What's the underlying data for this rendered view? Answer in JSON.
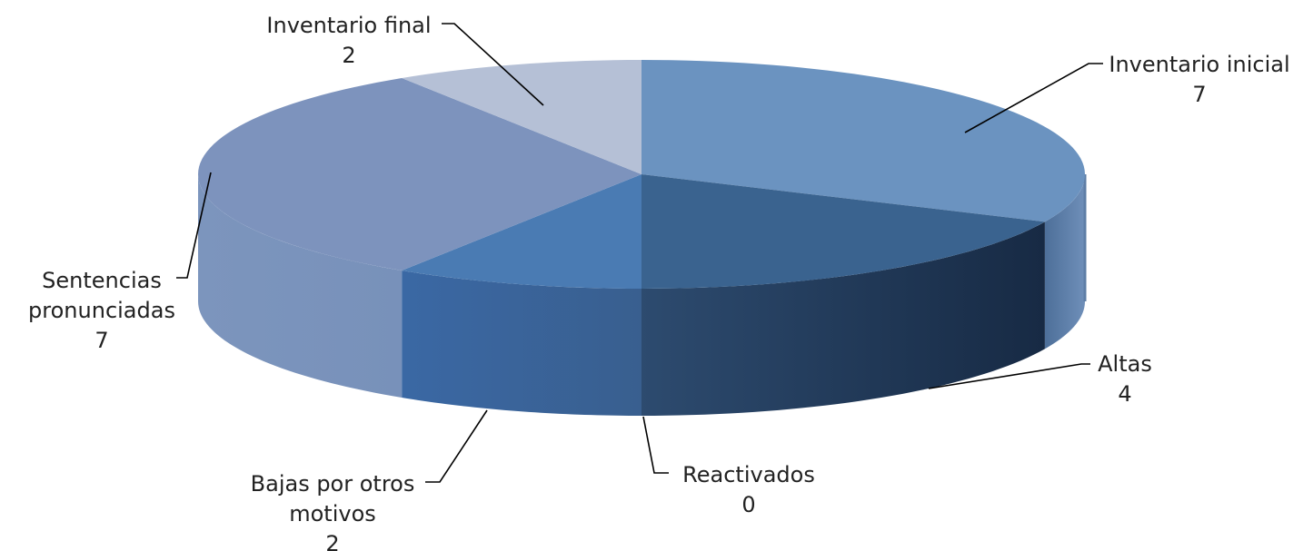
{
  "chart_data": {
    "type": "pie",
    "style": "3d",
    "title": "",
    "series": [
      {
        "name": "",
        "slices": [
          {
            "label": "Inventario inicial",
            "value": 7,
            "color": "#6b93c0"
          },
          {
            "label": "Altas",
            "value": 4,
            "color": "#3a638f"
          },
          {
            "label": "Reactivados",
            "value": 0,
            "color": "#3c6aa0"
          },
          {
            "label": "Bajas por otros motivos",
            "value": 2,
            "color": "#4a7bb3"
          },
          {
            "label": "Sentencias pronunciadas",
            "value": 7,
            "color": "#7d93bd"
          },
          {
            "label": "Inventario final",
            "value": 2,
            "color": "#b5c0d6"
          }
        ]
      }
    ],
    "legend": "none",
    "data_labels": "category-and-value"
  }
}
